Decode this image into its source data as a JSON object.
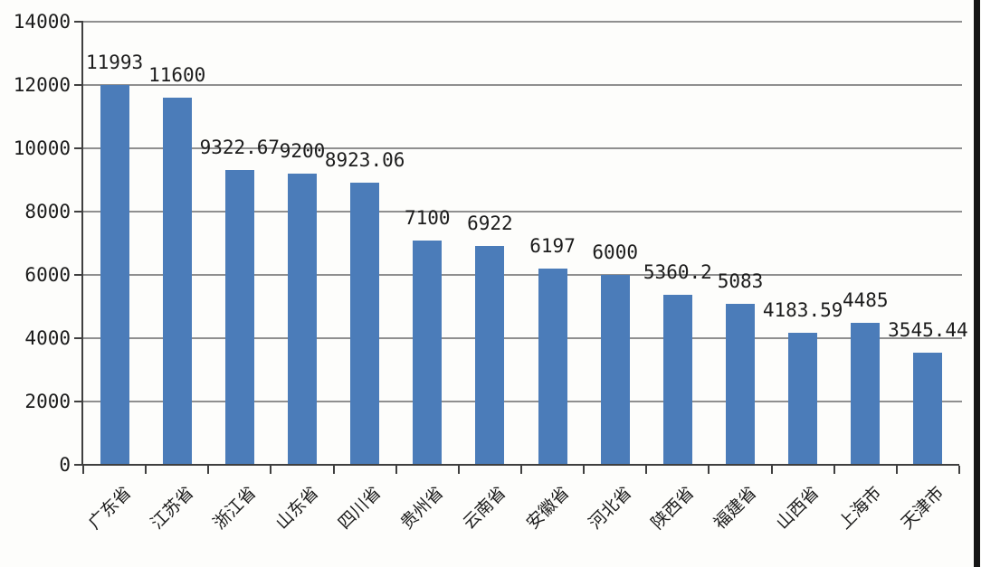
{
  "chart_data": {
    "type": "bar",
    "title": "",
    "xlabel": "",
    "ylabel": "",
    "categories": [
      "广东省",
      "江苏省",
      "浙江省",
      "山东省",
      "四川省",
      "贵州省",
      "云南省",
      "安徽省",
      "河北省",
      "陕西省",
      "福建省",
      "山西省",
      "上海市",
      "天津市"
    ],
    "values": [
      11993,
      11600,
      9322.67,
      9200,
      8923.06,
      7100,
      6922,
      6197,
      6000,
      5360.2,
      5083,
      4183.59,
      4485,
      3545.44
    ],
    "value_labels": [
      "11993",
      "11600",
      "9322.67",
      "9200",
      "8923.06",
      "7100",
      "6922",
      "6197",
      "6000",
      "5360.2",
      "5083",
      "4183.59",
      "4485",
      "3545.44"
    ],
    "ylim": [
      0,
      14000
    ],
    "yticks": [
      0,
      2000,
      4000,
      6000,
      8000,
      10000,
      12000,
      14000
    ],
    "ytick_labels": [
      "0",
      "2000",
      "4000",
      "6000",
      "8000",
      "10000",
      "12000",
      "14000"
    ],
    "grid": true,
    "legend": false,
    "colors": {
      "bar": "#4b7cb9",
      "gridline": "#8f8f8f",
      "axis": "#3f3f3f",
      "text": "#1c1c1c",
      "background": "#fdfdfb",
      "right_border": "#161616"
    }
  }
}
